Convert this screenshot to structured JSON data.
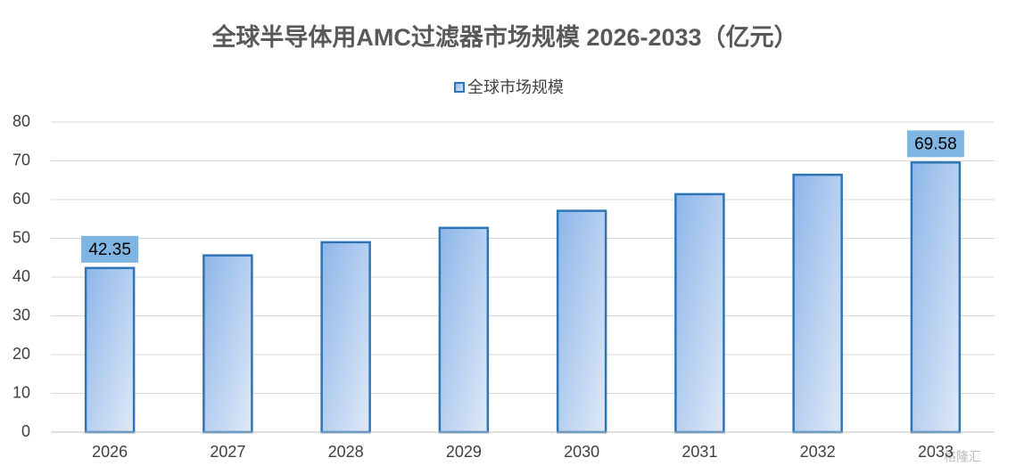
{
  "chart_data": {
    "type": "bar",
    "title": "全球半导体用AMC过滤器市场规模 2026-2033（亿元）",
    "categories": [
      "2026",
      "2027",
      "2028",
      "2029",
      "2030",
      "2031",
      "2032",
      "2033"
    ],
    "series": [
      {
        "name": "全球市场规模",
        "color": "#2e75b6",
        "values": [
          42.35,
          45.6,
          49.0,
          52.7,
          57.1,
          61.4,
          66.4,
          69.58
        ],
        "value_labels": [
          "42.35",
          null,
          null,
          null,
          null,
          null,
          null,
          "69.58"
        ]
      }
    ],
    "ylim": [
      0,
      80
    ],
    "yticks": [
      0,
      10,
      20,
      30,
      40,
      50,
      60,
      70,
      80
    ],
    "grid": true,
    "legend": "top",
    "watermark": "格隆汇"
  }
}
